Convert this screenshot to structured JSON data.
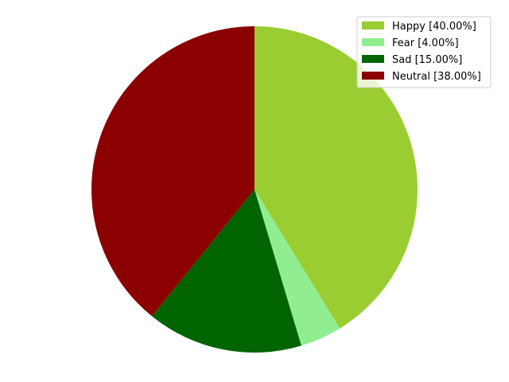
{
  "chart_data": {
    "type": "pie",
    "title": "",
    "start_angle_deg": 90,
    "direction": "clockwise",
    "legend_position": "top-right",
    "slices": [
      {
        "label": "Happy [40.00%]",
        "value": 40.0,
        "color": "#9acd32"
      },
      {
        "label": "Fear [4.00%]",
        "value": 4.0,
        "color": "#90ee90"
      },
      {
        "label": "Sad [15.00%]",
        "value": 15.0,
        "color": "#006400"
      },
      {
        "label": "Neutral [38.00%]",
        "value": 38.0,
        "color": "#8b0000"
      }
    ]
  }
}
